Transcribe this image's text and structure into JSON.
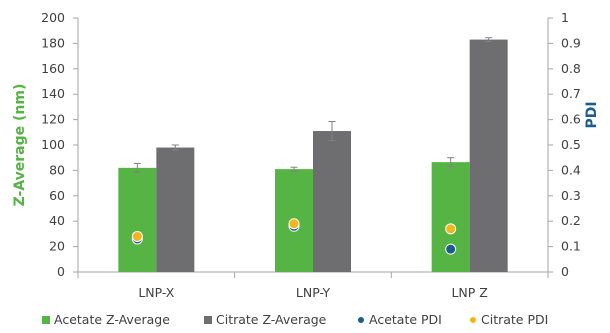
{
  "chart_data": {
    "type": "bar",
    "categories": [
      "LNP-X",
      "LNP-Y",
      "LNP Z"
    ],
    "ylabel": "Z-Average (nm)",
    "y2label": "PDI",
    "ylim": [
      0,
      200
    ],
    "y2lim": [
      0,
      1
    ],
    "yticks": [
      0,
      20,
      40,
      60,
      80,
      100,
      120,
      140,
      160,
      180,
      200
    ],
    "y2ticks": [
      "0",
      "0.1",
      "0.2",
      "0.3",
      "0.4",
      "0.5",
      "0.6",
      "0.7",
      "0.8",
      "0.9",
      "1"
    ],
    "grid": false,
    "legend_position": "bottom",
    "series": [
      {
        "name": "Acetate Z-Average",
        "kind": "bar",
        "axis": "left",
        "color": "#55b443",
        "values": [
          82,
          81,
          86.5
        ],
        "errors": [
          3.5,
          1.5,
          3.5
        ]
      },
      {
        "name": "Citrate Z-Average",
        "kind": "bar",
        "axis": "left",
        "color": "#6e6e70",
        "values": [
          98,
          111,
          183
        ],
        "errors": [
          2,
          7.5,
          1.5
        ]
      },
      {
        "name": "Acetate PDI",
        "kind": "point",
        "axis": "right",
        "color": "#1d5b8c",
        "values": [
          0.13,
          0.18,
          0.09
        ]
      },
      {
        "name": "Citrate PDI",
        "kind": "point",
        "axis": "right",
        "color": "#f2b51b",
        "values": [
          0.14,
          0.19,
          0.17
        ]
      }
    ]
  },
  "colors": {
    "ylabel": "#55b443",
    "y2label": "#1d5b8c",
    "axis": "#a6a6a6",
    "error_bar": "#808080"
  }
}
